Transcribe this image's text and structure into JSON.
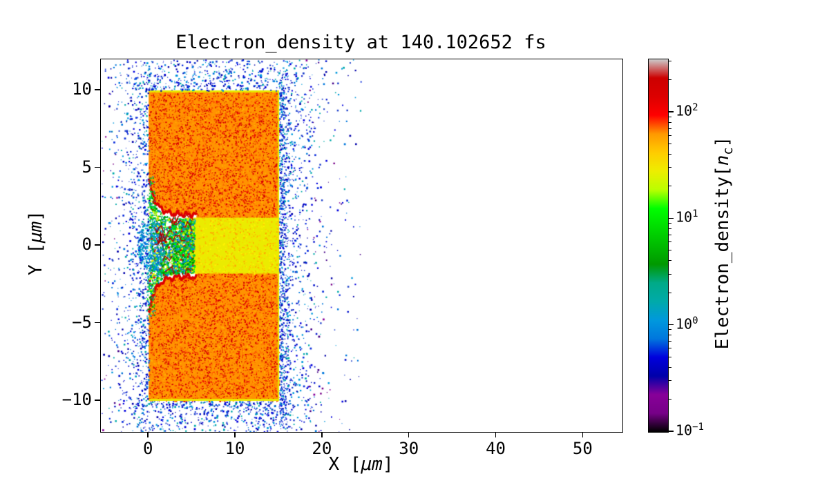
{
  "chart_data": {
    "type": "heatmap",
    "title": "Electron_density at 140.102652 fs",
    "time_fs": 140.102652,
    "xlabel": {
      "pre": "X [",
      "math": "μm",
      "post": "]"
    },
    "ylabel": {
      "pre": "Y [",
      "math": "μm",
      "post": "]"
    },
    "xlim": [
      -5.5,
      54.5
    ],
    "ylim": [
      -12,
      12
    ],
    "xticks": [
      0,
      10,
      20,
      30,
      40,
      50
    ],
    "yticks": [
      -10,
      -5,
      0,
      5,
      10
    ],
    "grid": false,
    "colorbar": {
      "label": {
        "pre": "Electron_density[",
        "math": "n",
        "sub": "c",
        "post": "]"
      },
      "scale": "log",
      "vmin": 0.1,
      "vmax": 316,
      "tick_exponents": [
        -1,
        0,
        1,
        2
      ],
      "colormap": "nipy_spectral",
      "stops": [
        [
          0,
          "#000000"
        ],
        [
          0.05,
          "#770088"
        ],
        [
          0.1,
          "#880099"
        ],
        [
          0.15,
          "#0000aa"
        ],
        [
          0.2,
          "#0000dd"
        ],
        [
          0.25,
          "#0077dd"
        ],
        [
          0.3,
          "#0099dd"
        ],
        [
          0.35,
          "#00aaaa"
        ],
        [
          0.4,
          "#00aa88"
        ],
        [
          0.45,
          "#009900"
        ],
        [
          0.5,
          "#00bb00"
        ],
        [
          0.55,
          "#00dd00"
        ],
        [
          0.6,
          "#00ff00"
        ],
        [
          0.65,
          "#bbff00"
        ],
        [
          0.7,
          "#eeee00"
        ],
        [
          0.75,
          "#ffcc00"
        ],
        [
          0.8,
          "#ff9900"
        ],
        [
          0.85,
          "#ff0000"
        ],
        [
          0.9,
          "#dd0000"
        ],
        [
          0.95,
          "#cc0000"
        ],
        [
          1,
          "#cccccc"
        ]
      ]
    },
    "regions": [
      {
        "name": "target-slab",
        "x": [
          0,
          15
        ],
        "y": [
          -10,
          10
        ],
        "density_nc": 70
      },
      {
        "name": "preformed-channel",
        "x": [
          4.2,
          15
        ],
        "y": [
          -1.8,
          1.8
        ],
        "density_nc": 28
      },
      {
        "name": "laser-interaction-zone",
        "x": [
          0,
          5.2
        ],
        "y": [
          -4.3,
          4.3
        ],
        "density_nc_range": [
          1,
          10
        ]
      },
      {
        "name": "blowoff-electron-halo",
        "x": [
          -5.5,
          24
        ],
        "y": [
          -12,
          12
        ],
        "density_nc_range": [
          0.1,
          1
        ]
      }
    ],
    "palette": {
      "background": "#ffffff",
      "slab_base": "#ff9300",
      "slab_speckle": [
        "#ee1100",
        "#dd0000",
        "#ff5500",
        "#cc0000",
        "#ff7700",
        "#ffb300"
      ],
      "channel_base": "#ebeb00",
      "channel_speckle": [
        "#ffcc00",
        "#ffaa00",
        "#fff200"
      ],
      "edge_strip": "#e8e800",
      "rim": "#dd0000",
      "rim_dark": "#aa0000",
      "turbulence": [
        "#00bb00",
        "#00dd00",
        "#009900",
        "#00ff00",
        "#00aa88",
        "#00aaaa",
        "#0099dd",
        "#0077dd",
        "#bbff00",
        "#eeee00",
        "#dd0000",
        "#00cc44",
        "#008800"
      ],
      "mouth_cluster": [
        "#0099dd",
        "#00aaaa",
        "#0077dd",
        "#00bbdd",
        "#0066cc"
      ],
      "scatter_near": [
        "#0000dd",
        "#0011cc",
        "#0000aa",
        "#1133dd",
        "#0077dd",
        "#0099dd",
        "#00aaaa",
        "#2244cc"
      ],
      "scatter_far": [
        "#770088",
        "#880099",
        "#440088",
        "#0000aa",
        "#0000dd"
      ]
    }
  }
}
